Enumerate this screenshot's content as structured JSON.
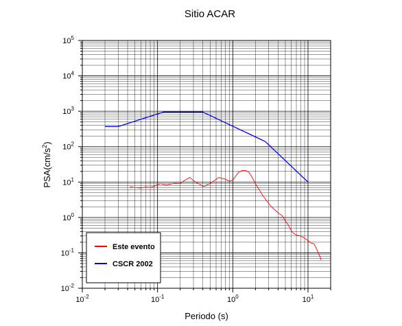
{
  "chart_data": {
    "type": "line",
    "title": "Sitio ACAR",
    "xlabel": "Periodo (s)",
    "ylabel_base": "PSA(cm/s",
    "ylabel_exp": "2",
    "ylabel_tail": ")",
    "x_scale": "log",
    "y_scale": "log",
    "xlim": [
      0.01,
      20
    ],
    "ylim": [
      0.01,
      100000
    ],
    "grid": true,
    "legend_position": "bottom-left",
    "x_ticks": [
      {
        "value": 0.01,
        "base": "10",
        "exp": "-2"
      },
      {
        "value": 0.1,
        "base": "10",
        "exp": "-1"
      },
      {
        "value": 1,
        "base": "10",
        "exp": "0"
      },
      {
        "value": 10,
        "base": "10",
        "exp": "1"
      }
    ],
    "y_ticks": [
      {
        "value": 0.01,
        "base": "10",
        "exp": "-2"
      },
      {
        "value": 0.1,
        "base": "10",
        "exp": "-1"
      },
      {
        "value": 1,
        "base": "10",
        "exp": "0"
      },
      {
        "value": 10,
        "base": "10",
        "exp": "1"
      },
      {
        "value": 100,
        "base": "10",
        "exp": "2"
      },
      {
        "value": 1000,
        "base": "10",
        "exp": "3"
      },
      {
        "value": 10000,
        "base": "10",
        "exp": "4"
      },
      {
        "value": 100000,
        "base": "10",
        "exp": "5"
      }
    ],
    "series": [
      {
        "name": "Este evento",
        "color": "#ff0000",
        "points": [
          [
            0.043,
            7.3
          ],
          [
            0.05,
            7.0
          ],
          [
            0.06,
            6.8
          ],
          [
            0.07,
            7.2
          ],
          [
            0.08,
            7.0
          ],
          [
            0.09,
            7.6
          ],
          [
            0.1,
            8.5
          ],
          [
            0.11,
            9.0
          ],
          [
            0.12,
            8.7
          ],
          [
            0.13,
            8.3
          ],
          [
            0.15,
            8.8
          ],
          [
            0.17,
            9.3
          ],
          [
            0.2,
            9.1
          ],
          [
            0.22,
            10.5
          ],
          [
            0.25,
            12.5
          ],
          [
            0.27,
            13.5
          ],
          [
            0.3,
            11.0
          ],
          [
            0.33,
            9.6
          ],
          [
            0.36,
            8.8
          ],
          [
            0.4,
            7.5
          ],
          [
            0.43,
            7.7
          ],
          [
            0.46,
            8.5
          ],
          [
            0.5,
            9.2
          ],
          [
            0.55,
            10.5
          ],
          [
            0.6,
            12.0
          ],
          [
            0.65,
            13.5
          ],
          [
            0.7,
            13.0
          ],
          [
            0.8,
            12.0
          ],
          [
            0.9,
            10.5
          ],
          [
            1.0,
            11.5
          ],
          [
            1.1,
            15.0
          ],
          [
            1.2,
            19.0
          ],
          [
            1.35,
            21.5
          ],
          [
            1.5,
            21.0
          ],
          [
            1.65,
            18.5
          ],
          [
            1.8,
            14.0
          ],
          [
            2.0,
            9.0
          ],
          [
            2.2,
            6.5
          ],
          [
            2.5,
            4.2
          ],
          [
            2.8,
            3.0
          ],
          [
            3.2,
            2.1
          ],
          [
            3.6,
            1.65
          ],
          [
            4.0,
            1.35
          ],
          [
            4.5,
            1.15
          ],
          [
            5.0,
            0.8
          ],
          [
            5.5,
            0.6
          ],
          [
            6.0,
            0.42
          ],
          [
            6.5,
            0.35
          ],
          [
            7.0,
            0.32
          ],
          [
            8.0,
            0.3
          ],
          [
            9.0,
            0.26
          ],
          [
            10.0,
            0.22
          ],
          [
            11.0,
            0.19
          ],
          [
            12.0,
            0.18
          ],
          [
            13.0,
            0.13
          ],
          [
            14.0,
            0.09
          ],
          [
            15.0,
            0.063
          ]
        ]
      },
      {
        "name": "CSCR 2002",
        "color": "#0000ff",
        "points": [
          [
            0.02,
            370
          ],
          [
            0.03,
            370
          ],
          [
            0.12,
            950
          ],
          [
            0.4,
            950
          ],
          [
            2.7,
            140
          ],
          [
            10.0,
            10
          ]
        ]
      }
    ]
  }
}
